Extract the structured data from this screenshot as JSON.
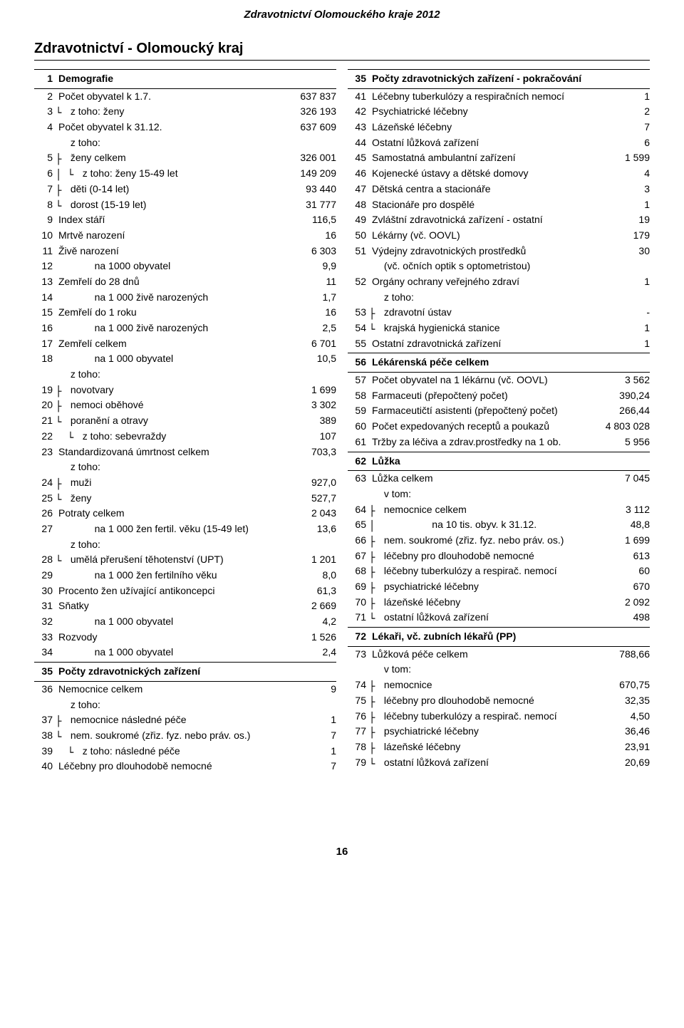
{
  "doc_header": "Zdravotnictví Olomouckého kraje 2012",
  "region_title": "Zdravotnictví - Olomoucký kraj",
  "page_number": "16",
  "left": [
    {
      "n": "1",
      "label": "Demografie",
      "value": "",
      "bold": true,
      "tree": "",
      "section": true
    },
    {
      "n": "2",
      "label": "Počet obyvatel k 1.7.",
      "value": "637 837",
      "tree": ""
    },
    {
      "n": "3",
      "label": "z toho: ženy",
      "value": "326 193",
      "tree": "└ "
    },
    {
      "n": "4",
      "label": "Počet obyvatel k 31.12.",
      "value": "637 609",
      "tree": ""
    },
    {
      "n": "",
      "label": "z toho:",
      "value": "",
      "tree": "  "
    },
    {
      "n": "5",
      "label": "ženy celkem",
      "value": "326 001",
      "tree": "├ "
    },
    {
      "n": "6",
      "label": "z toho: ženy 15-49 let",
      "value": "149 209",
      "tree": "│ └ "
    },
    {
      "n": "7",
      "label": "děti (0-14 let)",
      "value": "93 440",
      "tree": "├ "
    },
    {
      "n": "8",
      "label": "dorost (15-19 let)",
      "value": "31 777",
      "tree": "└ "
    },
    {
      "n": "9",
      "label": "Index stáří",
      "value": "116,5",
      "tree": ""
    },
    {
      "n": "10",
      "label": "Mrtvě narození",
      "value": "16",
      "tree": ""
    },
    {
      "n": "11",
      "label": "Živě narození",
      "value": "6 303",
      "tree": ""
    },
    {
      "n": "12",
      "label": "na 1000 obyvatel",
      "value": "9,9",
      "tree": "      "
    },
    {
      "n": "13",
      "label": "Zemřelí do 28 dnů",
      "value": "11",
      "tree": ""
    },
    {
      "n": "14",
      "label": "na 1 000 živě narozených",
      "value": "1,7",
      "tree": "      "
    },
    {
      "n": "15",
      "label": "Zemřelí do 1 roku",
      "value": "16",
      "tree": ""
    },
    {
      "n": "16",
      "label": "na 1 000 živě narozených",
      "value": "2,5",
      "tree": "      "
    },
    {
      "n": "17",
      "label": "Zemřelí celkem",
      "value": "6 701",
      "tree": ""
    },
    {
      "n": "18",
      "label": "na 1 000 obyvatel",
      "value": "10,5",
      "tree": "      "
    },
    {
      "n": "",
      "label": "z toho:",
      "value": "",
      "tree": "  "
    },
    {
      "n": "19",
      "label": "novotvary",
      "value": "1 699",
      "tree": "├ "
    },
    {
      "n": "20",
      "label": "nemoci oběhové",
      "value": "3 302",
      "tree": "├ "
    },
    {
      "n": "21",
      "label": "poranění a otravy",
      "value": "389",
      "tree": "└ "
    },
    {
      "n": "22",
      "label": "z toho: sebevraždy",
      "value": "107",
      "tree": "  └ "
    },
    {
      "n": "23",
      "label": "Standardizovaná úmrtnost celkem",
      "value": "703,3",
      "tree": ""
    },
    {
      "n": "",
      "label": "z toho:",
      "value": "",
      "tree": "  "
    },
    {
      "n": "24",
      "label": "muži",
      "value": "927,0",
      "tree": "├ "
    },
    {
      "n": "25",
      "label": "ženy",
      "value": "527,7",
      "tree": "└ "
    },
    {
      "n": "26",
      "label": "Potraty celkem",
      "value": "2 043",
      "tree": ""
    },
    {
      "n": "27",
      "label": "na 1 000 žen fertil. věku (15-49 let)",
      "value": "13,6",
      "tree": "      "
    },
    {
      "n": "",
      "label": "z toho:",
      "value": "",
      "tree": "  "
    },
    {
      "n": "28",
      "label": "umělá přerušení těhotenství (UPT)",
      "value": "1 201",
      "tree": "└ "
    },
    {
      "n": "29",
      "label": "na 1 000 žen fertilního věku",
      "value": "8,0",
      "tree": "      "
    },
    {
      "n": "30",
      "label": "Procento žen užívající antikoncepci",
      "value": "61,3",
      "tree": ""
    },
    {
      "n": "31",
      "label": "Sňatky",
      "value": "2 669",
      "tree": ""
    },
    {
      "n": "32",
      "label": "na 1 000 obyvatel",
      "value": "4,2",
      "tree": "      "
    },
    {
      "n": "33",
      "label": "Rozvody",
      "value": "1 526",
      "tree": ""
    },
    {
      "n": "34",
      "label": "na 1 000 obyvatel",
      "value": "2,4",
      "tree": "      "
    },
    {
      "n": "35",
      "label": "Počty zdravotnických zařízení",
      "value": "",
      "bold": true,
      "tree": "",
      "section": true
    },
    {
      "n": "36",
      "label": "Nemocnice celkem",
      "value": "9",
      "tree": ""
    },
    {
      "n": "",
      "label": "z toho:",
      "value": "",
      "tree": "  "
    },
    {
      "n": "37",
      "label": "nemocnice následné péče",
      "value": "1",
      "tree": "├ "
    },
    {
      "n": "38",
      "label": "nem. soukromé (zřiz. fyz. nebo práv. os.)",
      "value": "7",
      "tree": "└ "
    },
    {
      "n": "39",
      "label": "z toho: následné péče",
      "value": "1",
      "tree": "  └ "
    },
    {
      "n": "40",
      "label": "Léčebny pro dlouhodobě nemocné",
      "value": "7",
      "tree": ""
    }
  ],
  "right": [
    {
      "n": "35",
      "label": "Počty zdravotnických zařízení - pokračování",
      "value": "",
      "bold": true,
      "tree": "",
      "section": true
    },
    {
      "n": "41",
      "label": "Léčebny tuberkulózy a respiračních nemocí",
      "value": "1",
      "tree": ""
    },
    {
      "n": "42",
      "label": "Psychiatrické léčebny",
      "value": "2",
      "tree": ""
    },
    {
      "n": "43",
      "label": "Lázeňské léčebny",
      "value": "7",
      "tree": ""
    },
    {
      "n": "44",
      "label": "Ostatní lůžková zařízení",
      "value": "6",
      "tree": ""
    },
    {
      "n": "45",
      "label": "Samostatná ambulantní zařízení",
      "value": "1 599",
      "tree": ""
    },
    {
      "n": "46",
      "label": "Kojenecké ústavy a dětské domovy",
      "value": "4",
      "tree": ""
    },
    {
      "n": "47",
      "label": "Dětská centra a stacionáře",
      "value": "3",
      "tree": ""
    },
    {
      "n": "48",
      "label": "Stacionáře pro dospělé",
      "value": "1",
      "tree": ""
    },
    {
      "n": "49",
      "label": "Zvláštní zdravotnická zařízení - ostatní",
      "value": "19",
      "tree": ""
    },
    {
      "n": "50",
      "label": "Lékárny (vč. OOVL)",
      "value": "179",
      "tree": ""
    },
    {
      "n": "51",
      "label": "Výdejny zdravotnických prostředků",
      "value": "30",
      "tree": ""
    },
    {
      "n": "",
      "label": "(vč. očních optik s optometristou)",
      "value": "",
      "tree": "  "
    },
    {
      "n": "52",
      "label": "Orgány ochrany veřejného zdraví",
      "value": "1",
      "tree": ""
    },
    {
      "n": "",
      "label": "z toho:",
      "value": "",
      "tree": "  "
    },
    {
      "n": "53",
      "label": "zdravotní ústav",
      "value": "-",
      "tree": "├ "
    },
    {
      "n": "54",
      "label": "krajská hygienická stanice",
      "value": "1",
      "tree": "└ "
    },
    {
      "n": "55",
      "label": "Ostatní zdravotnická zařízení",
      "value": "1",
      "tree": ""
    },
    {
      "n": "56",
      "label": "Lékárenská péče celkem",
      "value": "",
      "bold": true,
      "tree": "",
      "section": true
    },
    {
      "n": "57",
      "label": "Počet obyvatel na 1 lékárnu (vč. OOVL)",
      "value": "3 562",
      "tree": ""
    },
    {
      "n": "58",
      "label": "Farmaceuti (přepočtený počet)",
      "value": "390,24",
      "tree": ""
    },
    {
      "n": "59",
      "label": "Farmaceutičtí asistenti (přepočtený počet)",
      "value": "266,44",
      "tree": ""
    },
    {
      "n": "60",
      "label": "Počet expedovaných receptů a poukazů",
      "value": "4 803 028",
      "tree": ""
    },
    {
      "n": "61",
      "label": "Tržby za léčiva a zdrav.prostředky na 1 ob.",
      "value": "5 956",
      "tree": ""
    },
    {
      "n": "62",
      "label": "Lůžka",
      "value": "",
      "bold": true,
      "tree": "",
      "section": true
    },
    {
      "n": "63",
      "label": "Lůžka celkem",
      "value": "7 045",
      "tree": ""
    },
    {
      "n": "",
      "label": "v tom:",
      "value": "",
      "tree": "  "
    },
    {
      "n": "64",
      "label": "nemocnice celkem",
      "value": "3 112",
      "tree": "├ "
    },
    {
      "n": "65",
      "label": "na 10 tis. obyv. k 31.12.",
      "value": "48,8",
      "tree": "│         "
    },
    {
      "n": "66",
      "label": "nem. soukromé (zřiz. fyz. nebo práv. os.)",
      "value": "1 699",
      "tree": "├ "
    },
    {
      "n": "67",
      "label": "léčebny pro dlouhodobě nemocné",
      "value": "613",
      "tree": "├ "
    },
    {
      "n": "68",
      "label": "léčebny tuberkulózy a respirač. nemocí",
      "value": "60",
      "tree": "├ "
    },
    {
      "n": "69",
      "label": "psychiatrické léčebny",
      "value": "670",
      "tree": "├ "
    },
    {
      "n": "70",
      "label": "lázeňské léčebny",
      "value": "2 092",
      "tree": "├ "
    },
    {
      "n": "71",
      "label": "ostatní lůžková zařízení",
      "value": "498",
      "tree": "└ "
    },
    {
      "n": "72",
      "label": "Lékaři, vč. zubních lékařů (PP)",
      "value": "",
      "bold": true,
      "tree": "",
      "section": true
    },
    {
      "n": "73",
      "label": "Lůžková péče celkem",
      "value": "788,66",
      "tree": ""
    },
    {
      "n": "",
      "label": "v tom:",
      "value": "",
      "tree": "  "
    },
    {
      "n": "74",
      "label": "nemocnice",
      "value": "670,75",
      "tree": "├ "
    },
    {
      "n": "75",
      "label": "léčebny pro dlouhodobě nemocné",
      "value": "32,35",
      "tree": "├ "
    },
    {
      "n": "76",
      "label": "léčebny tuberkulózy a respirač. nemocí",
      "value": "4,50",
      "tree": "├ "
    },
    {
      "n": "77",
      "label": "psychiatrické léčebny",
      "value": "36,46",
      "tree": "├ "
    },
    {
      "n": "78",
      "label": "lázeňské léčebny",
      "value": "23,91",
      "tree": "├ "
    },
    {
      "n": "79",
      "label": "ostatní lůžková zařízení",
      "value": "20,69",
      "tree": "└ "
    }
  ]
}
